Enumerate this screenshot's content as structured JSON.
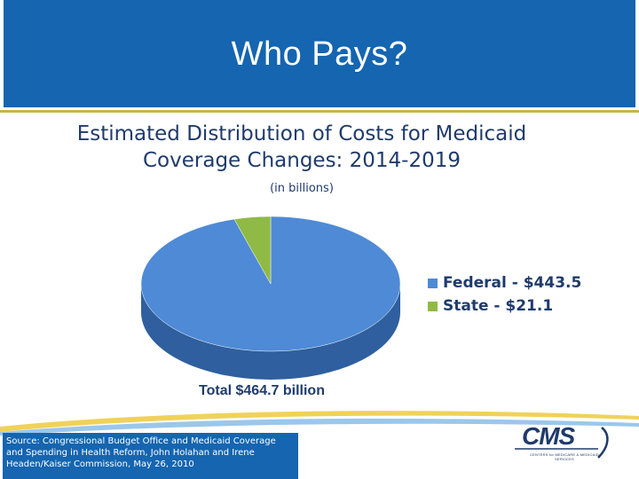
{
  "header": {
    "title": "Who Pays?"
  },
  "chart_data": {
    "type": "pie",
    "title": "Estimated Distribution of Costs for Medicaid Coverage Changes: 2014-2019",
    "title_line1": "Estimated Distribution of Costs for Medicaid",
    "title_line2": "Coverage Changes: 2014-2019",
    "subtitle": "(in billions)",
    "categories": [
      "Federal",
      "State"
    ],
    "values": [
      443.5,
      21.1
    ],
    "legend_labels": [
      "Federal - $443.5",
      "State - $21.1"
    ],
    "colors": [
      "#4f8ad6",
      "#8fba45"
    ],
    "legend_position": "right",
    "total_label": "Total $464.7 billion"
  },
  "footer": {
    "source": "Source:  Congressional Budget Office and Medicaid Coverage and Spending in Health Reform, John Holahan and Irene Headen/Kaiser Commission, May 26, 2010",
    "logo_text": "CMS",
    "logo_subtext": "CENTERS for MEDICARE & MEDICAID SERVICES"
  }
}
